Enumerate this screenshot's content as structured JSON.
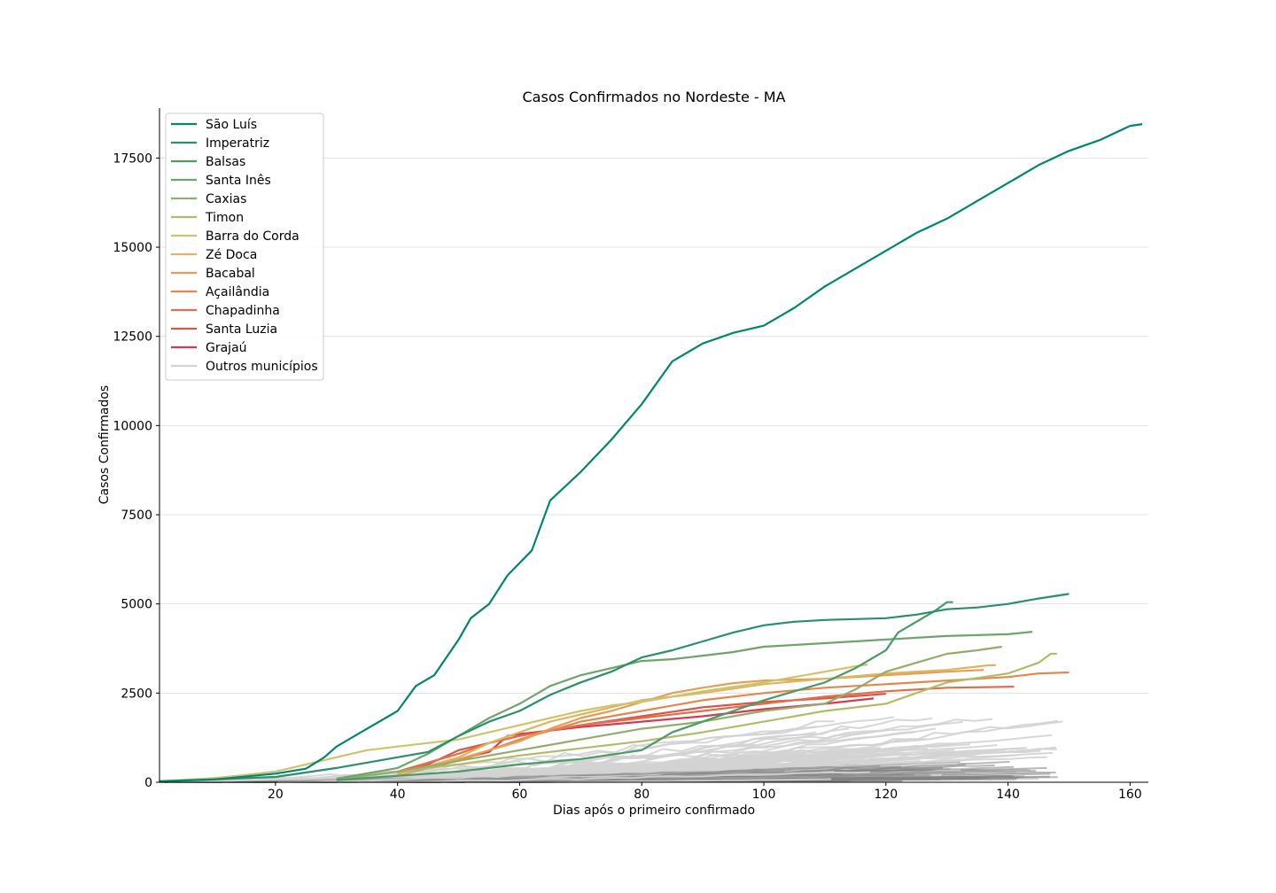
{
  "chart_data": {
    "type": "line",
    "title": "Casos Confirmados no Nordeste - MA",
    "xlabel": "Dias após o primeiro confirmado",
    "ylabel": "Casos Confirmados",
    "xlim": [
      1,
      163
    ],
    "ylim": [
      0,
      18900
    ],
    "x_ticks": [
      20,
      40,
      60,
      80,
      100,
      120,
      140,
      160
    ],
    "y_ticks": [
      0,
      2500,
      5000,
      7500,
      10000,
      12500,
      15000,
      17500
    ],
    "grid": "horizontal",
    "legend_position": "top-left",
    "series": [
      {
        "name": "São Luís",
        "color": "#00876c",
        "points": [
          [
            1,
            30
          ],
          [
            10,
            80
          ],
          [
            20,
            240
          ],
          [
            25,
            380
          ],
          [
            28,
            700
          ],
          [
            30,
            1000
          ],
          [
            35,
            1500
          ],
          [
            40,
            2000
          ],
          [
            43,
            2700
          ],
          [
            46,
            3000
          ],
          [
            50,
            4000
          ],
          [
            52,
            4600
          ],
          [
            55,
            5000
          ],
          [
            58,
            5800
          ],
          [
            62,
            6500
          ],
          [
            65,
            7900
          ],
          [
            70,
            8700
          ],
          [
            75,
            9600
          ],
          [
            80,
            10600
          ],
          [
            85,
            11800
          ],
          [
            90,
            12300
          ],
          [
            95,
            12600
          ],
          [
            100,
            12800
          ],
          [
            105,
            13300
          ],
          [
            110,
            13900
          ],
          [
            115,
            14400
          ],
          [
            120,
            14900
          ],
          [
            125,
            15400
          ],
          [
            130,
            15800
          ],
          [
            135,
            16300
          ],
          [
            140,
            16800
          ],
          [
            145,
            17300
          ],
          [
            150,
            17700
          ],
          [
            155,
            18000
          ],
          [
            160,
            18400
          ],
          [
            162,
            18450
          ]
        ]
      },
      {
        "name": "Imperatriz",
        "color": "#2a9068",
        "points": [
          [
            1,
            20
          ],
          [
            20,
            150
          ],
          [
            30,
            400
          ],
          [
            40,
            700
          ],
          [
            45,
            850
          ],
          [
            50,
            1300
          ],
          [
            55,
            1700
          ],
          [
            60,
            2000
          ],
          [
            65,
            2450
          ],
          [
            70,
            2800
          ],
          [
            75,
            3100
          ],
          [
            80,
            3500
          ],
          [
            85,
            3700
          ],
          [
            90,
            3950
          ],
          [
            95,
            4200
          ],
          [
            100,
            4400
          ],
          [
            105,
            4500
          ],
          [
            110,
            4550
          ],
          [
            120,
            4600
          ],
          [
            125,
            4700
          ],
          [
            130,
            4850
          ],
          [
            135,
            4900
          ],
          [
            140,
            5000
          ],
          [
            145,
            5150
          ],
          [
            150,
            5280
          ]
        ]
      },
      {
        "name": "Balsas",
        "color": "#4a9a6a",
        "points": [
          [
            30,
            60
          ],
          [
            50,
            300
          ],
          [
            60,
            500
          ],
          [
            70,
            650
          ],
          [
            80,
            900
          ],
          [
            85,
            1400
          ],
          [
            90,
            1700
          ],
          [
            95,
            2000
          ],
          [
            100,
            2300
          ],
          [
            105,
            2550
          ],
          [
            110,
            2800
          ],
          [
            115,
            3200
          ],
          [
            120,
            3700
          ],
          [
            122,
            4200
          ],
          [
            125,
            4500
          ],
          [
            128,
            4800
          ],
          [
            130,
            5050
          ],
          [
            131,
            5050
          ]
        ]
      },
      {
        "name": "Santa Inês",
        "color": "#6fa56a",
        "points": [
          [
            30,
            100
          ],
          [
            40,
            400
          ],
          [
            45,
            800
          ],
          [
            50,
            1300
          ],
          [
            55,
            1800
          ],
          [
            60,
            2200
          ],
          [
            62,
            2400
          ],
          [
            65,
            2700
          ],
          [
            70,
            3000
          ],
          [
            75,
            3200
          ],
          [
            80,
            3400
          ],
          [
            85,
            3450
          ],
          [
            90,
            3550
          ],
          [
            95,
            3650
          ],
          [
            100,
            3800
          ],
          [
            105,
            3850
          ],
          [
            110,
            3900
          ],
          [
            120,
            4000
          ],
          [
            125,
            4050
          ],
          [
            130,
            4100
          ],
          [
            140,
            4150
          ],
          [
            144,
            4220
          ]
        ]
      },
      {
        "name": "Caxias",
        "color": "#92ae6a",
        "points": [
          [
            30,
            80
          ],
          [
            40,
            300
          ],
          [
            50,
            600
          ],
          [
            60,
            900
          ],
          [
            70,
            1200
          ],
          [
            80,
            1500
          ],
          [
            90,
            1700
          ],
          [
            100,
            2000
          ],
          [
            110,
            2200
          ],
          [
            115,
            2600
          ],
          [
            120,
            3100
          ],
          [
            125,
            3350
          ],
          [
            130,
            3600
          ],
          [
            135,
            3700
          ],
          [
            139,
            3800
          ]
        ]
      },
      {
        "name": "Timon",
        "color": "#b3bb6a",
        "points": [
          [
            30,
            60
          ],
          [
            40,
            300
          ],
          [
            50,
            500
          ],
          [
            60,
            750
          ],
          [
            70,
            950
          ],
          [
            80,
            1150
          ],
          [
            90,
            1400
          ],
          [
            100,
            1700
          ],
          [
            110,
            2000
          ],
          [
            120,
            2200
          ],
          [
            125,
            2500
          ],
          [
            130,
            2800
          ],
          [
            140,
            3050
          ],
          [
            145,
            3350
          ],
          [
            147,
            3600
          ],
          [
            148,
            3600
          ]
        ]
      },
      {
        "name": "Barra do Corda",
        "color": "#cfc46c",
        "points": [
          [
            1,
            30
          ],
          [
            10,
            120
          ],
          [
            15,
            200
          ],
          [
            20,
            300
          ],
          [
            25,
            500
          ],
          [
            30,
            700
          ],
          [
            35,
            900
          ],
          [
            40,
            1000
          ],
          [
            45,
            1100
          ],
          [
            50,
            1200
          ],
          [
            55,
            1400
          ],
          [
            60,
            1600
          ],
          [
            65,
            1800
          ],
          [
            70,
            2000
          ],
          [
            75,
            2150
          ],
          [
            80,
            2250
          ],
          [
            90,
            2550
          ],
          [
            100,
            2800
          ],
          [
            110,
            3100
          ],
          [
            115,
            3250
          ],
          [
            117,
            3300
          ]
        ]
      },
      {
        "name": "Zé Doca",
        "color": "#dfb560",
        "points": [
          [
            40,
            200
          ],
          [
            50,
            700
          ],
          [
            55,
            1100
          ],
          [
            60,
            1400
          ],
          [
            65,
            1700
          ],
          [
            70,
            1900
          ],
          [
            75,
            2100
          ],
          [
            80,
            2300
          ],
          [
            90,
            2500
          ],
          [
            100,
            2750
          ],
          [
            110,
            2900
          ],
          [
            120,
            3050
          ],
          [
            130,
            3150
          ],
          [
            137,
            3280
          ],
          [
            138,
            3280
          ]
        ]
      },
      {
        "name": "Bacabal",
        "color": "#e59e53",
        "points": [
          [
            40,
            250
          ],
          [
            50,
            650
          ],
          [
            55,
            900
          ],
          [
            60,
            1150
          ],
          [
            65,
            1500
          ],
          [
            70,
            1800
          ],
          [
            75,
            2000
          ],
          [
            80,
            2250
          ],
          [
            85,
            2500
          ],
          [
            90,
            2650
          ],
          [
            95,
            2780
          ],
          [
            100,
            2850
          ],
          [
            110,
            2900
          ],
          [
            120,
            3000
          ],
          [
            130,
            3100
          ],
          [
            136,
            3150
          ]
        ]
      },
      {
        "name": "Açailândia",
        "color": "#e5874d",
        "points": [
          [
            40,
            200
          ],
          [
            50,
            600
          ],
          [
            55,
            900
          ],
          [
            60,
            1200
          ],
          [
            65,
            1450
          ],
          [
            70,
            1700
          ],
          [
            75,
            1850
          ],
          [
            80,
            2000
          ],
          [
            90,
            2300
          ],
          [
            100,
            2500
          ],
          [
            110,
            2650
          ],
          [
            120,
            2750
          ],
          [
            130,
            2850
          ],
          [
            140,
            2950
          ],
          [
            145,
            3050
          ],
          [
            150,
            3080
          ]
        ]
      },
      {
        "name": "Chapadinha",
        "color": "#e1704a",
        "points": [
          [
            40,
            300
          ],
          [
            50,
            800
          ],
          [
            55,
            1100
          ],
          [
            60,
            1300
          ],
          [
            65,
            1450
          ],
          [
            70,
            1600
          ],
          [
            80,
            1800
          ],
          [
            90,
            2000
          ],
          [
            100,
            2200
          ],
          [
            110,
            2400
          ],
          [
            120,
            2550
          ],
          [
            130,
            2650
          ],
          [
            141,
            2680
          ]
        ]
      },
      {
        "name": "Santa Luzia",
        "color": "#d95748",
        "points": [
          [
            40,
            250
          ],
          [
            45,
            500
          ],
          [
            50,
            900
          ],
          [
            55,
            1100
          ],
          [
            60,
            1300
          ],
          [
            65,
            1450
          ],
          [
            70,
            1600
          ],
          [
            80,
            1850
          ],
          [
            90,
            2100
          ],
          [
            100,
            2250
          ],
          [
            110,
            2350
          ],
          [
            120,
            2480
          ]
        ]
      },
      {
        "name": "Grajaú",
        "color": "#d43d51",
        "points": [
          [
            40,
            300
          ],
          [
            45,
            450
          ],
          [
            50,
            650
          ],
          [
            55,
            850
          ],
          [
            58,
            1300
          ],
          [
            60,
            1350
          ],
          [
            65,
            1450
          ],
          [
            70,
            1550
          ],
          [
            80,
            1700
          ],
          [
            90,
            1850
          ],
          [
            100,
            2050
          ],
          [
            110,
            2200
          ],
          [
            118,
            2350
          ]
        ]
      }
    ],
    "others": {
      "name": "Outros municípios",
      "color": "#d3d3d3",
      "dark_color": "#808080"
    }
  }
}
